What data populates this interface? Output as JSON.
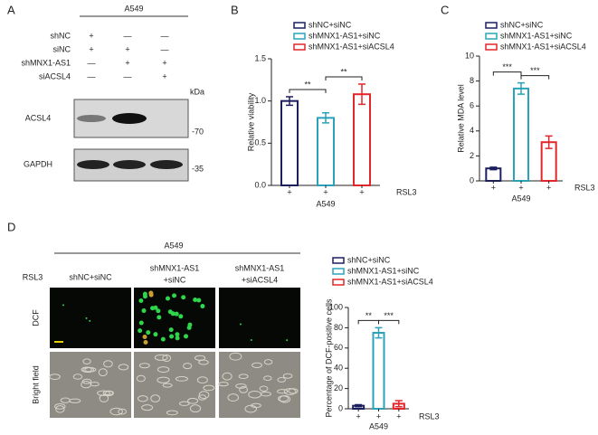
{
  "panel_letters": [
    "A",
    "B",
    "C",
    "D"
  ],
  "blot": {
    "cell_line": "A549",
    "conditions": [
      {
        "label": "shNC",
        "signs": [
          "+",
          "—",
          "—"
        ]
      },
      {
        "label": "siNC",
        "signs": [
          "+",
          "+",
          "—"
        ]
      },
      {
        "label": "shMNX1-AS1",
        "signs": [
          "—",
          "+",
          "+"
        ]
      },
      {
        "label": "siACSL4",
        "signs": [
          "—",
          "—",
          "+"
        ]
      }
    ],
    "unit": "kDa",
    "bands": [
      {
        "label": "ACSL4",
        "marker": "-70"
      },
      {
        "label": "GAPDH",
        "marker": "-35"
      }
    ]
  },
  "images": {
    "cell_line": "A549",
    "treatment": "RSL3",
    "columns": [
      [
        "shNC+siNC"
      ],
      [
        "shMNX1-AS1",
        "+siNC"
      ],
      [
        "shMNX1-AS1",
        "+siACSL4"
      ]
    ],
    "rows": [
      "DCF",
      "Bright field"
    ]
  },
  "chart_data": [
    {
      "type": "bar",
      "ylabel": "Relative viability",
      "xlabel": "A549",
      "row_label": "RSL3",
      "categories": [
        "+",
        "+",
        "+"
      ],
      "values": [
        1.0,
        0.8,
        1.08
      ],
      "errors": [
        0.05,
        0.06,
        0.12
      ],
      "legend": [
        "shNC+siNC",
        "shMNX1-AS1+siNC",
        "shMNX1-AS1+siACSL4"
      ],
      "colors": [
        "#1c1f5e",
        "#2aa3ba",
        "#e3262a"
      ],
      "ylim": [
        0,
        1.5
      ],
      "yticks": [
        {
          "value": 0,
          "label": "0.0"
        },
        0.5,
        {
          "value": 1,
          "label": "1.0"
        },
        1.5
      ],
      "annotations": [
        "**",
        "**"
      ]
    },
    {
      "type": "bar",
      "ylabel": "Relative MDA level",
      "xlabel": "A549",
      "row_label": "RSL3",
      "categories": [
        "+",
        "+",
        "+"
      ],
      "values": [
        1.0,
        7.4,
        3.1
      ],
      "errors": [
        0.1,
        0.45,
        0.5
      ],
      "legend": [
        "shNC+siNC",
        "shMNX1-AS1+siNC",
        "shMNX1-AS1+siACSL4"
      ],
      "colors": [
        "#1c1f5e",
        "#2aa3ba",
        "#e3262a"
      ],
      "ylim": [
        0,
        10
      ],
      "yticks": [
        0,
        2,
        4,
        6,
        8,
        10
      ],
      "annotations": [
        "***",
        "***"
      ]
    },
    {
      "type": "bar",
      "ylabel": "Percentage of DCF-positive cells",
      "xlabel": "A549",
      "row_label": "RSL3",
      "categories": [
        "+",
        "+",
        "+"
      ],
      "values": [
        3,
        75,
        5
      ],
      "errors": [
        1,
        5,
        3
      ],
      "legend": [
        "shNC+siNC",
        "shMNX1-AS1+siNC",
        "shMNX1-AS1+siACSL4"
      ],
      "colors": [
        "#1c1f5e",
        "#2aa3ba",
        "#e3262a"
      ],
      "ylim": [
        0,
        100
      ],
      "yticks": [
        0,
        20,
        40,
        60,
        80,
        100
      ],
      "annotations": [
        "**",
        "***"
      ]
    }
  ]
}
